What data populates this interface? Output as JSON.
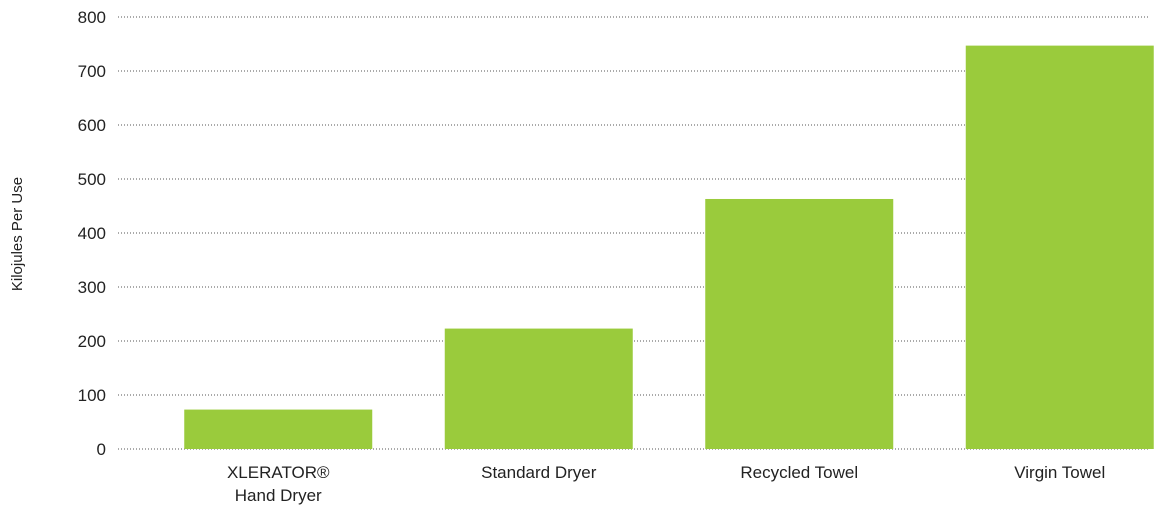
{
  "chart_data": {
    "type": "bar",
    "title": "",
    "xlabel": "",
    "ylabel": "Kilojules Per Use",
    "categories": [
      [
        "XLERATOR®",
        "Hand Dryer"
      ],
      [
        "Standard Dryer"
      ],
      [
        "Recycled Towel"
      ],
      [
        "Virgin Towel"
      ]
    ],
    "values": [
      73,
      223,
      463,
      747
    ],
    "ylim": [
      0,
      800
    ],
    "yticks": [
      0,
      100,
      200,
      300,
      400,
      500,
      600,
      700,
      800
    ],
    "grid": "horizontal dotted",
    "legend": "none",
    "bar_color": "#9acb3c"
  }
}
